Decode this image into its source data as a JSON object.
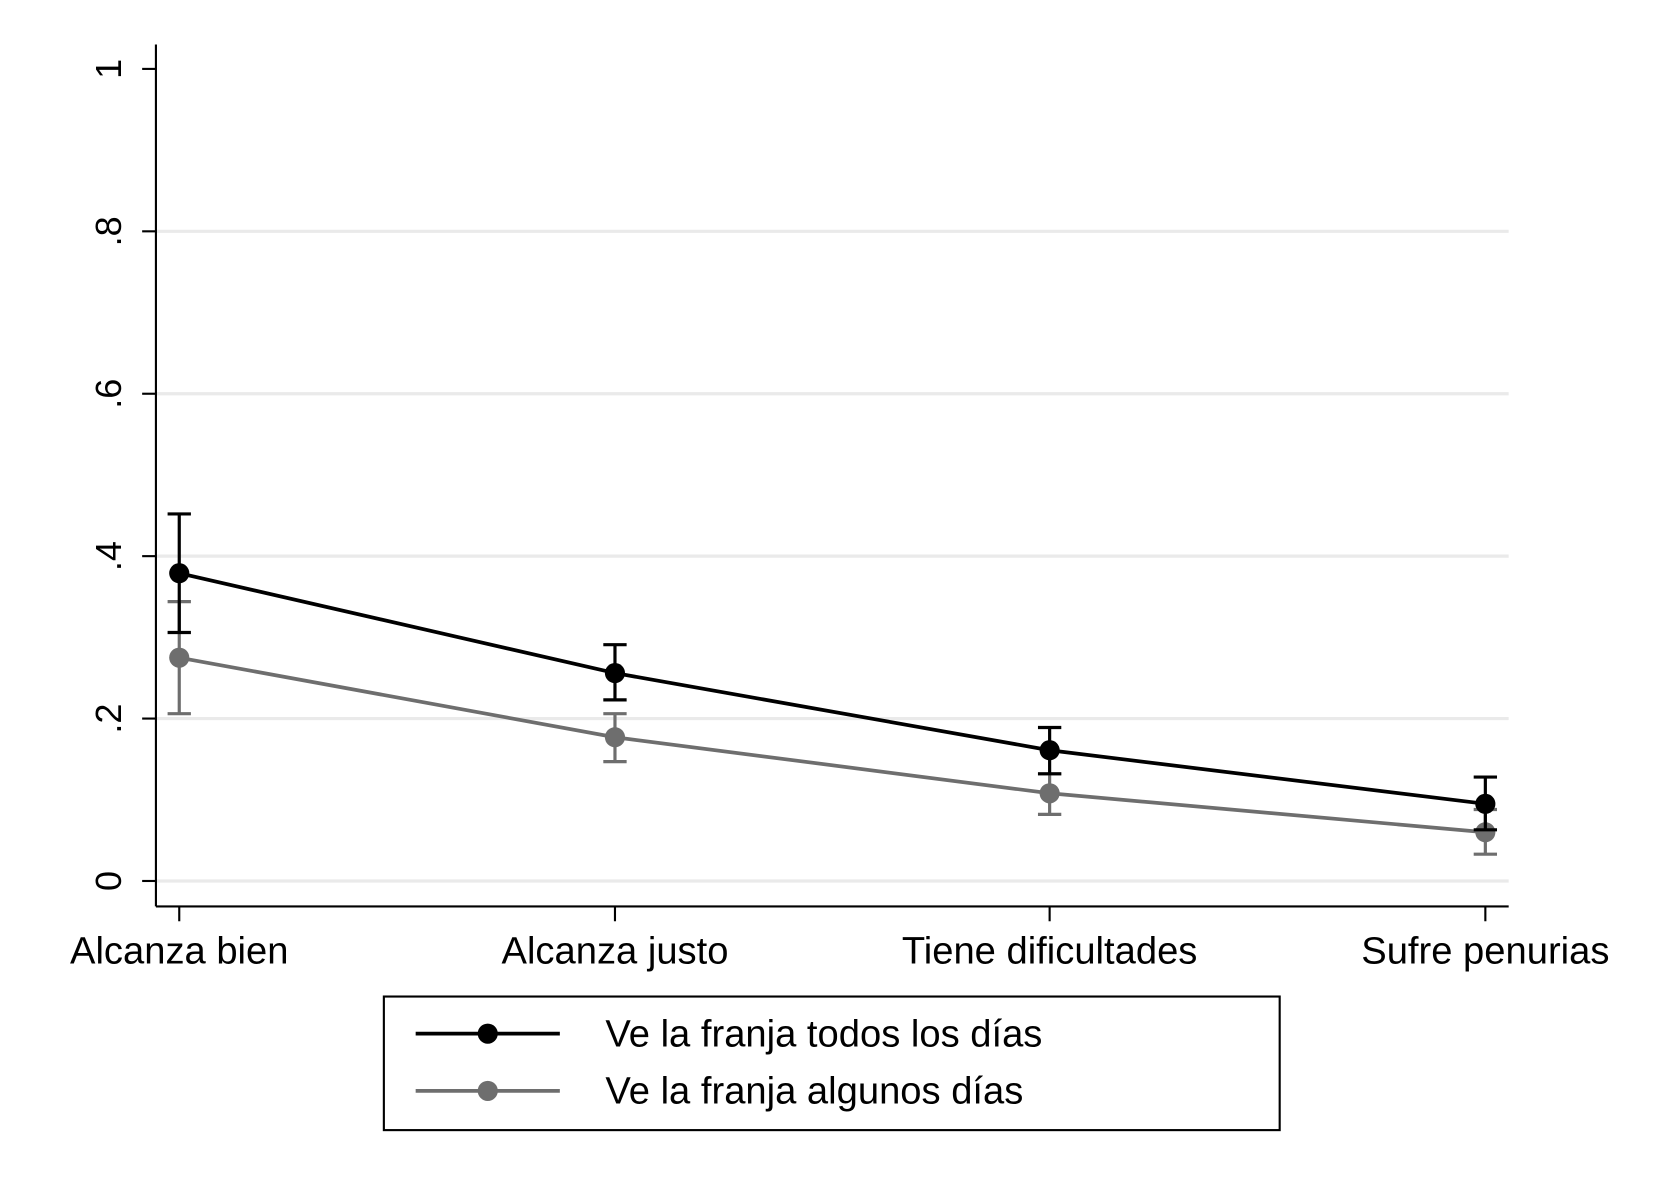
{
  "chart_data": {
    "type": "line",
    "title": "",
    "xlabel": "",
    "ylabel": "",
    "ylim": [
      0,
      1
    ],
    "yticks": [
      0,
      0.2,
      0.4,
      0.6,
      0.8,
      1
    ],
    "ytick_labels": [
      "0",
      ".2",
      ".4",
      ".6",
      ".8",
      "1"
    ],
    "categories": [
      "Alcanza bien",
      "Alcanza justo",
      "Tiene dificultades",
      "Sufre penurias"
    ],
    "grid": true,
    "legend_position": "bottom",
    "series": [
      {
        "name": "Ve la franja todos los días",
        "color": "#000000",
        "values": [
          0.379,
          0.256,
          0.161,
          0.095
        ],
        "ci_low": [
          0.306,
          0.223,
          0.132,
          0.063
        ],
        "ci_high": [
          0.452,
          0.291,
          0.189,
          0.128
        ]
      },
      {
        "name": "Ve la franja algunos días",
        "color": "#6e6e6e",
        "values": [
          0.275,
          0.177,
          0.108,
          0.06
        ],
        "ci_low": [
          0.206,
          0.147,
          0.082,
          0.033
        ],
        "ci_high": [
          0.344,
          0.206,
          0.132,
          0.088
        ]
      }
    ]
  }
}
